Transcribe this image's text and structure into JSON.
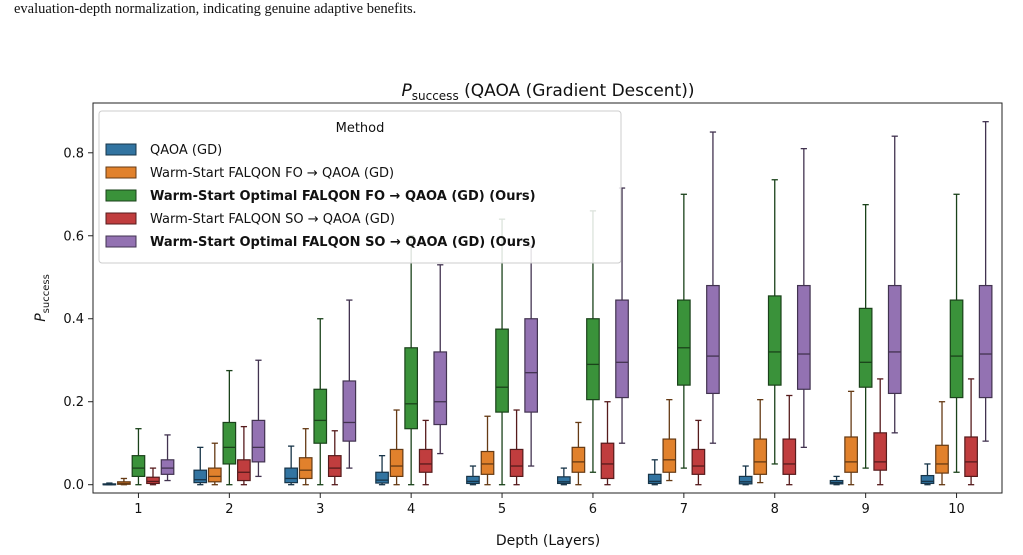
{
  "caption_fragment": "evaluation-depth normalization, indicating genuine adaptive benefits.",
  "chart_data": {
    "type": "box",
    "title_main": "P",
    "title_sub": "success",
    "title_rest": " (QAOA (Gradient Descent))",
    "xlabel": "Depth (Layers)",
    "ylabel_main": "P",
    "ylabel_sub": "success",
    "categories": [
      "1",
      "2",
      "3",
      "4",
      "5",
      "6",
      "7",
      "8",
      "9",
      "10"
    ],
    "ylim": [
      -0.02,
      0.92
    ],
    "yticks": [
      0.0,
      0.2,
      0.4,
      0.6,
      0.8
    ],
    "ytick_labels": [
      "0.0",
      "0.2",
      "0.4",
      "0.6",
      "0.8"
    ],
    "legend_title": "Method",
    "legend_placement": "top-left",
    "grid": false,
    "series": [
      {
        "name": "QAOA (GD)",
        "color": "#3274a1",
        "bold": false,
        "boxes": [
          [
            0.0,
            0.0,
            0.0,
            0.002,
            0.004
          ],
          [
            0.0,
            0.005,
            0.012,
            0.035,
            0.09
          ],
          [
            0.0,
            0.005,
            0.015,
            0.04,
            0.093
          ],
          [
            0.0,
            0.004,
            0.011,
            0.03,
            0.07
          ],
          [
            0.0,
            0.003,
            0.008,
            0.02,
            0.045
          ],
          [
            0.0,
            0.003,
            0.007,
            0.019,
            0.04
          ],
          [
            0.0,
            0.003,
            0.008,
            0.025,
            0.06
          ],
          [
            0.0,
            0.002,
            0.007,
            0.02,
            0.045
          ],
          [
            0.0,
            0.002,
            0.005,
            0.01,
            0.02
          ],
          [
            0.0,
            0.003,
            0.008,
            0.022,
            0.05
          ]
        ]
      },
      {
        "name": "Warm-Start FALQON FO → QAOA (GD)",
        "color": "#e1812c",
        "bold": false,
        "boxes": [
          [
            0.0,
            0.001,
            0.003,
            0.007,
            0.015
          ],
          [
            0.0,
            0.007,
            0.02,
            0.04,
            0.1
          ],
          [
            0.0,
            0.015,
            0.035,
            0.065,
            0.135
          ],
          [
            0.0,
            0.02,
            0.045,
            0.085,
            0.18
          ],
          [
            0.0,
            0.025,
            0.05,
            0.08,
            0.165
          ],
          [
            0.0,
            0.03,
            0.055,
            0.09,
            0.15
          ],
          [
            0.01,
            0.03,
            0.06,
            0.11,
            0.205
          ],
          [
            0.005,
            0.025,
            0.055,
            0.11,
            0.205
          ],
          [
            0.0,
            0.03,
            0.055,
            0.115,
            0.225
          ],
          [
            0.0,
            0.028,
            0.05,
            0.095,
            0.2
          ]
        ]
      },
      {
        "name": "Warm-Start Optimal FALQON FO → QAOA (GD) (Ours)",
        "color": "#3a923a",
        "bold": true,
        "boxes": [
          [
            0.0,
            0.02,
            0.04,
            0.07,
            0.135
          ],
          [
            0.0,
            0.05,
            0.09,
            0.15,
            0.275
          ],
          [
            0.0,
            0.1,
            0.155,
            0.23,
            0.4
          ],
          [
            0.0,
            0.135,
            0.195,
            0.33,
            0.6
          ],
          [
            0.0,
            0.175,
            0.235,
            0.375,
            0.64
          ],
          [
            0.03,
            0.205,
            0.29,
            0.4,
            0.66
          ],
          [
            0.04,
            0.24,
            0.33,
            0.445,
            0.7
          ],
          [
            0.05,
            0.24,
            0.32,
            0.455,
            0.735
          ],
          [
            0.04,
            0.235,
            0.295,
            0.425,
            0.675
          ],
          [
            0.03,
            0.21,
            0.31,
            0.445,
            0.7
          ]
        ]
      },
      {
        "name": "Warm-Start FALQON SO → QAOA (GD)",
        "color": "#c03d3e",
        "bold": false,
        "boxes": [
          [
            0.0,
            0.003,
            0.008,
            0.018,
            0.04
          ],
          [
            0.0,
            0.01,
            0.03,
            0.06,
            0.14
          ],
          [
            0.0,
            0.02,
            0.04,
            0.07,
            0.13
          ],
          [
            0.0,
            0.03,
            0.05,
            0.085,
            0.155
          ],
          [
            0.0,
            0.02,
            0.045,
            0.085,
            0.18
          ],
          [
            0.0,
            0.015,
            0.05,
            0.1,
            0.2
          ],
          [
            0.0,
            0.025,
            0.045,
            0.085,
            0.155
          ],
          [
            0.0,
            0.025,
            0.05,
            0.11,
            0.215
          ],
          [
            0.0,
            0.035,
            0.055,
            0.125,
            0.255
          ],
          [
            0.0,
            0.02,
            0.055,
            0.115,
            0.255
          ]
        ]
      },
      {
        "name": "Warm-Start Optimal FALQON SO → QAOA (GD) (Ours)",
        "color": "#9372b2",
        "bold": true,
        "boxes": [
          [
            0.01,
            0.025,
            0.04,
            0.06,
            0.12
          ],
          [
            0.02,
            0.055,
            0.09,
            0.155,
            0.3
          ],
          [
            0.04,
            0.105,
            0.15,
            0.25,
            0.445
          ],
          [
            0.075,
            0.145,
            0.2,
            0.32,
            0.53
          ],
          [
            0.045,
            0.175,
            0.27,
            0.4,
            0.575
          ],
          [
            0.1,
            0.21,
            0.295,
            0.445,
            0.715
          ],
          [
            0.1,
            0.22,
            0.31,
            0.48,
            0.85
          ],
          [
            0.09,
            0.23,
            0.315,
            0.48,
            0.81
          ],
          [
            0.125,
            0.22,
            0.32,
            0.48,
            0.84
          ],
          [
            0.105,
            0.21,
            0.315,
            0.48,
            0.875
          ]
        ]
      }
    ]
  }
}
